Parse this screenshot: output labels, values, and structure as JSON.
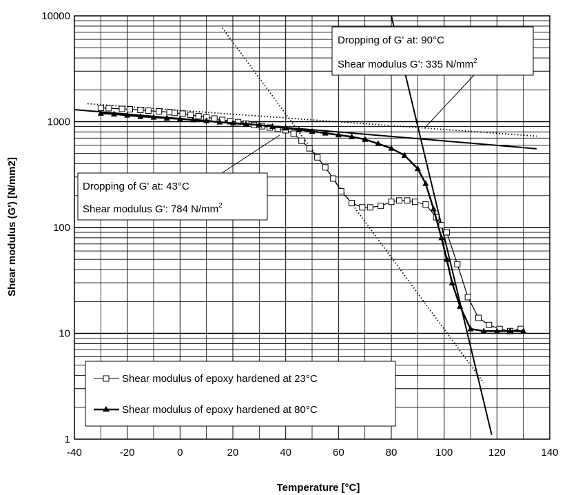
{
  "chart_data": {
    "type": "line",
    "xlabel": "Temperature [°C]",
    "ylabel": "Shear modulus (G') [N/mm2]",
    "xlim": [
      -40,
      140
    ],
    "ylim": [
      1,
      10000
    ],
    "yscale": "log",
    "grid": true,
    "legend_position": "bottom-left",
    "x_ticks": [
      "-40",
      "-20",
      "0",
      "20",
      "40",
      "60",
      "80",
      "100",
      "120",
      "140"
    ],
    "y_ticks": [
      "1",
      "10",
      "100",
      "1000",
      "10000"
    ],
    "series": [
      {
        "name": "Shear modulus of epoxy hardened at 23°C",
        "marker": "square",
        "x": [
          -30,
          -27,
          -22,
          -19,
          -15,
          -12,
          -8,
          -4,
          -2,
          1,
          4,
          7,
          10,
          13,
          16,
          19,
          22,
          25,
          28,
          31,
          34,
          37,
          40,
          43,
          46,
          49,
          52,
          55,
          58,
          61,
          65,
          69,
          72,
          76,
          80,
          83,
          86,
          89,
          93,
          97,
          99,
          101,
          105,
          109,
          113,
          117,
          121,
          125,
          129
        ],
        "y": [
          1350,
          1340,
          1320,
          1310,
          1290,
          1270,
          1250,
          1230,
          1210,
          1190,
          1160,
          1130,
          1100,
          1070,
          1040,
          1010,
          990,
          960,
          930,
          905,
          880,
          855,
          830,
          770,
          660,
          560,
          460,
          370,
          290,
          220,
          170,
          155,
          155,
          160,
          175,
          180,
          180,
          175,
          165,
          125,
          105,
          90,
          45,
          22,
          14,
          12,
          11,
          10.5,
          11
        ]
      },
      {
        "name": "Shear modulus of epoxy hardened at 80°C",
        "marker": "triangle",
        "x": [
          -30,
          -25,
          -20,
          -15,
          -10,
          -5,
          0,
          5,
          10,
          15,
          20,
          25,
          30,
          35,
          40,
          45,
          50,
          55,
          60,
          65,
          70,
          75,
          80,
          85,
          90,
          93,
          96,
          99,
          101,
          103,
          106,
          110,
          115,
          120,
          125,
          130
        ],
        "y": [
          1200,
          1180,
          1150,
          1120,
          1100,
          1080,
          1060,
          1040,
          1020,
          990,
          970,
          950,
          930,
          900,
          870,
          840,
          810,
          780,
          750,
          720,
          680,
          620,
          560,
          480,
          360,
          260,
          150,
          80,
          50,
          30,
          18,
          11,
          10.5,
          10.5,
          10.5,
          10.5
        ]
      }
    ],
    "tangent_lines": [
      {
        "style": "dotted",
        "x": [
          -35,
          135
        ],
        "y": [
          1480,
          730
        ]
      },
      {
        "style": "dotted",
        "x": [
          16,
          115
        ],
        "y": [
          7700,
          3.4
        ]
      },
      {
        "style": "solid",
        "x": [
          -40,
          135
        ],
        "y": [
          1300,
          555
        ]
      },
      {
        "style": "solid",
        "x": [
          80,
          118
        ],
        "y": [
          10000,
          1.1
        ]
      }
    ],
    "annotations": [
      {
        "line1": "Dropping of G' at: 90°C",
        "line2_prefix": "Shear modulus G': 335 N/mm",
        "line2_sup": "2"
      },
      {
        "line1": "Dropping of G' at: 43°C",
        "line2_prefix": "Shear modulus G': 784 N/mm",
        "line2_sup": "2"
      }
    ]
  }
}
